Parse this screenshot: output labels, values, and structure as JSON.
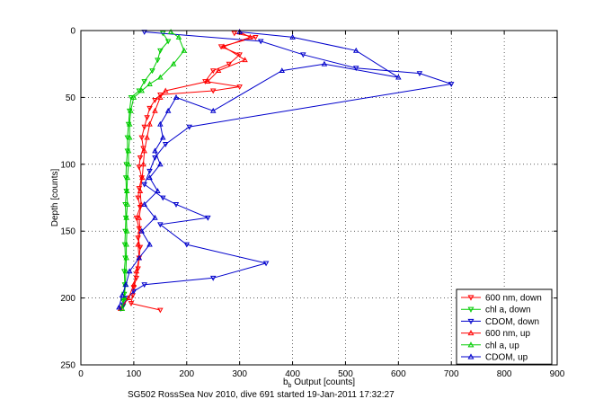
{
  "chart_data": {
    "type": "scatter",
    "title": "",
    "xlabel": "b_b Output [counts]",
    "ylabel": "Depth [counts]",
    "caption": "SG502 RossSea Nov 2010, dive 691 started 19-Jan-2011 17:32:27",
    "xlim": [
      0,
      900
    ],
    "ylim": [
      0,
      250
    ],
    "y_reversed": true,
    "grid": true,
    "legend_position": "bottom-right",
    "x_ticks": [
      "0",
      "100",
      "200",
      "300",
      "400",
      "500",
      "600",
      "700",
      "800",
      "900"
    ],
    "y_ticks": [
      "0",
      "50",
      "100",
      "150",
      "200",
      "250"
    ],
    "series": [
      {
        "name": "600 nm, down",
        "color": "#ff0000",
        "marker": "triangle-down",
        "connected": true,
        "points": [
          [
            290,
            2
          ],
          [
            330,
            5
          ],
          [
            265,
            12
          ],
          [
            300,
            18
          ],
          [
            280,
            25
          ],
          [
            250,
            30
          ],
          [
            235,
            38
          ],
          [
            300,
            42
          ],
          [
            250,
            45
          ],
          [
            150,
            48
          ],
          [
            140,
            52
          ],
          [
            130,
            58
          ],
          [
            125,
            65
          ],
          [
            120,
            72
          ],
          [
            115,
            80
          ],
          [
            118,
            88
          ],
          [
            112,
            95
          ],
          [
            110,
            102
          ],
          [
            115,
            110
          ],
          [
            110,
            118
          ],
          [
            108,
            125
          ],
          [
            112,
            132
          ],
          [
            105,
            140
          ],
          [
            110,
            148
          ],
          [
            108,
            155
          ],
          [
            112,
            162
          ],
          [
            110,
            170
          ],
          [
            108,
            178
          ],
          [
            105,
            185
          ],
          [
            100,
            192
          ],
          [
            98,
            198
          ],
          [
            95,
            204
          ],
          [
            150,
            209
          ]
        ]
      },
      {
        "name": "chl a, down",
        "color": "#00cc00",
        "marker": "triangle-down",
        "connected": true,
        "points": [
          [
            155,
            2
          ],
          [
            165,
            8
          ],
          [
            150,
            15
          ],
          [
            145,
            22
          ],
          [
            135,
            30
          ],
          [
            120,
            38
          ],
          [
            110,
            45
          ],
          [
            95,
            50
          ],
          [
            92,
            60
          ],
          [
            90,
            70
          ],
          [
            88,
            80
          ],
          [
            88,
            90
          ],
          [
            86,
            100
          ],
          [
            85,
            110
          ],
          [
            86,
            120
          ],
          [
            84,
            130
          ],
          [
            85,
            140
          ],
          [
            84,
            150
          ],
          [
            83,
            160
          ],
          [
            84,
            170
          ],
          [
            82,
            180
          ],
          [
            83,
            190
          ],
          [
            82,
            197
          ],
          [
            80,
            202
          ],
          [
            80,
            206
          ]
        ]
      },
      {
        "name": "CDOM, down",
        "color": "#0000cc",
        "marker": "triangle-down",
        "connected": true,
        "points": [
          [
            120,
            1
          ],
          [
            340,
            8
          ],
          [
            420,
            18
          ],
          [
            520,
            28
          ],
          [
            640,
            32
          ],
          [
            700,
            40
          ],
          [
            205,
            72
          ],
          [
            160,
            85
          ],
          [
            140,
            95
          ],
          [
            130,
            105
          ],
          [
            120,
            115
          ],
          [
            155,
            125
          ],
          [
            180,
            130
          ],
          [
            240,
            140
          ],
          [
            150,
            145
          ],
          [
            200,
            160
          ],
          [
            350,
            174
          ],
          [
            250,
            185
          ],
          [
            120,
            190
          ],
          [
            100,
            195
          ],
          [
            88,
            200
          ],
          [
            80,
            205
          ],
          [
            75,
            208
          ]
        ]
      },
      {
        "name": "600 nm, up",
        "color": "#ff0000",
        "marker": "triangle-up",
        "connected": true,
        "points": [
          [
            75,
            208
          ],
          [
            90,
            200
          ],
          [
            100,
            190
          ],
          [
            105,
            180
          ],
          [
            110,
            170
          ],
          [
            108,
            160
          ],
          [
            112,
            150
          ],
          [
            110,
            140
          ],
          [
            114,
            130
          ],
          [
            112,
            120
          ],
          [
            116,
            110
          ],
          [
            118,
            100
          ],
          [
            120,
            90
          ],
          [
            125,
            80
          ],
          [
            130,
            70
          ],
          [
            140,
            60
          ],
          [
            150,
            50
          ],
          [
            160,
            45
          ],
          [
            240,
            38
          ],
          [
            260,
            30
          ],
          [
            310,
            22
          ],
          [
            270,
            12
          ],
          [
            320,
            5
          ],
          [
            300,
            1
          ]
        ]
      },
      {
        "name": "chl a, up",
        "color": "#00cc00",
        "marker": "triangle-up",
        "connected": true,
        "points": [
          [
            78,
            208
          ],
          [
            82,
            200
          ],
          [
            84,
            190
          ],
          [
            85,
            180
          ],
          [
            86,
            170
          ],
          [
            86,
            160
          ],
          [
            87,
            150
          ],
          [
            86,
            140
          ],
          [
            88,
            130
          ],
          [
            87,
            120
          ],
          [
            88,
            110
          ],
          [
            90,
            100
          ],
          [
            90,
            90
          ],
          [
            92,
            80
          ],
          [
            92,
            70
          ],
          [
            94,
            60
          ],
          [
            100,
            50
          ],
          [
            115,
            45
          ],
          [
            130,
            40
          ],
          [
            150,
            35
          ],
          [
            175,
            25
          ],
          [
            195,
            15
          ],
          [
            185,
            5
          ],
          [
            170,
            1
          ]
        ]
      },
      {
        "name": "CDOM, up",
        "color": "#0000cc",
        "marker": "triangle-up",
        "connected": true,
        "points": [
          [
            72,
            207
          ],
          [
            78,
            198
          ],
          [
            85,
            190
          ],
          [
            92,
            180
          ],
          [
            110,
            170
          ],
          [
            130,
            160
          ],
          [
            115,
            150
          ],
          [
            140,
            140
          ],
          [
            120,
            130
          ],
          [
            145,
            120
          ],
          [
            130,
            110
          ],
          [
            150,
            100
          ],
          [
            140,
            90
          ],
          [
            155,
            80
          ],
          [
            150,
            70
          ],
          [
            165,
            60
          ],
          [
            180,
            50
          ],
          [
            250,
            60
          ],
          [
            380,
            30
          ],
          [
            460,
            25
          ],
          [
            600,
            35
          ],
          [
            520,
            15
          ],
          [
            400,
            5
          ],
          [
            300,
            1
          ]
        ]
      }
    ]
  }
}
